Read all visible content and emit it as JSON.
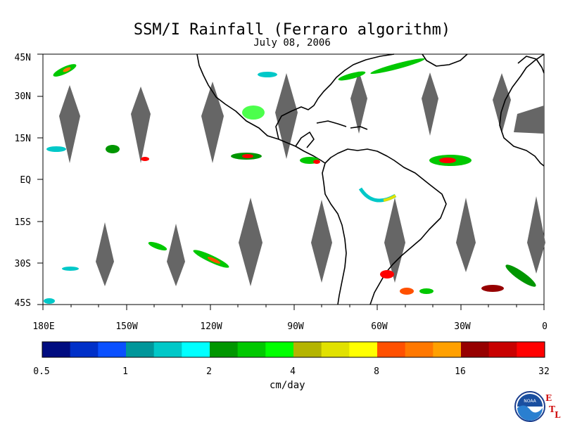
{
  "map": {
    "title": "SSM/I Rainfall (Ferraro algorithm)",
    "date": "July 08, 2006",
    "lat_labels": [
      "45N",
      "30N",
      "15N",
      "EQ",
      "15S",
      "30S",
      "45S"
    ],
    "lon_labels": [
      "180E",
      "150W",
      "120W",
      "90W",
      "60W",
      "30W",
      "0"
    ],
    "extent": {
      "lon": [
        -180,
        0
      ],
      "lat": [
        -45,
        45
      ]
    }
  },
  "colorbar": {
    "ticks": [
      "0.5",
      "1",
      "2",
      "4",
      "8",
      "16",
      "32"
    ],
    "unit": "cm/day",
    "colors": [
      "#000c80",
      "#0030c8",
      "#0a50ff",
      "#00969a",
      "#00c8c8",
      "#00ffff",
      "#009600",
      "#00c800",
      "#00ff00",
      "#b4b400",
      "#e1e100",
      "#ffff00",
      "#ff5000",
      "#ff7800",
      "#ffa000",
      "#960000",
      "#c80000",
      "#ff0000"
    ]
  },
  "logo": {
    "text": "NOAA",
    "lab_letters": [
      "E",
      "T",
      "L"
    ]
  }
}
